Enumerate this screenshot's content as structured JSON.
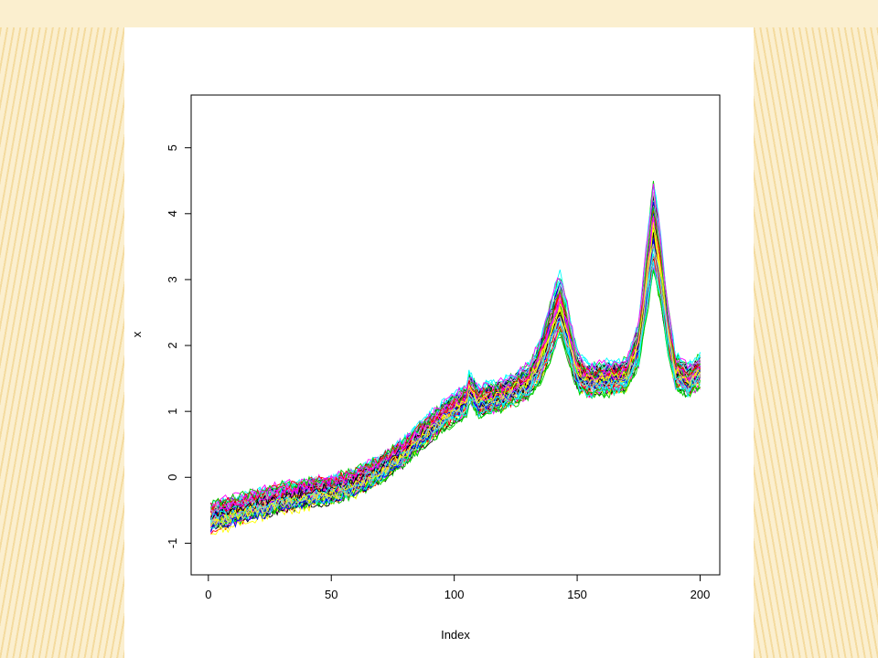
{
  "chart_data": {
    "type": "line",
    "title": "",
    "xlabel": "Index",
    "ylabel": "x",
    "xlim": [
      -7,
      208
    ],
    "ylim": [
      -1.48,
      5.8
    ],
    "x_ticks": [
      0,
      50,
      100,
      150,
      200
    ],
    "y_ticks": [
      -1,
      0,
      1,
      2,
      3,
      4,
      5
    ],
    "x_tick_labels": [
      "0",
      "50",
      "100",
      "150",
      "200"
    ],
    "y_tick_labels": [
      "-1",
      "0",
      "1",
      "2",
      "3",
      "4",
      "5"
    ],
    "n_points": 200,
    "n_series": 80,
    "grid": false,
    "legend": "none",
    "mean_profile": {
      "x": [
        1,
        10,
        20,
        30,
        40,
        50,
        60,
        70,
        80,
        90,
        100,
        105,
        106,
        110,
        120,
        130,
        135,
        140,
        143,
        146,
        150,
        155,
        160,
        165,
        170,
        175,
        178,
        181,
        184,
        187,
        190,
        195,
        200
      ],
      "y": [
        -0.62,
        -0.52,
        -0.42,
        -0.32,
        -0.25,
        -0.2,
        -0.08,
        0.12,
        0.4,
        0.75,
        1.05,
        1.15,
        1.35,
        1.15,
        1.25,
        1.45,
        1.75,
        2.3,
        2.6,
        2.2,
        1.6,
        1.45,
        1.5,
        1.5,
        1.55,
        2.0,
        2.9,
        3.8,
        3.1,
        2.2,
        1.6,
        1.45,
        1.6
      ]
    },
    "series_colors": [
      "#000000",
      "#ff0000",
      "#00cd00",
      "#0000ff",
      "#00ffff",
      "#ff00ff",
      "#ffff00",
      "#bebebe"
    ]
  }
}
